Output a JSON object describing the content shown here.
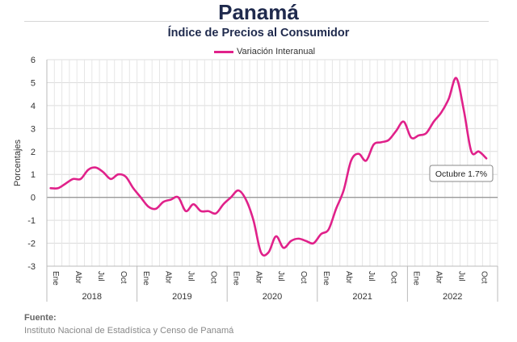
{
  "header": {
    "title": "Panamá",
    "subtitle": "Índice de Precios al Consumidor"
  },
  "source": {
    "label": "Fuente:",
    "text": "Instituto Nacional de Estadística y Censo de Panamá"
  },
  "chart_data": {
    "type": "line",
    "title": "",
    "ylabel": "Porcentajes",
    "xlabel": "",
    "ylim": [
      -3,
      6
    ],
    "yticks": [
      -3,
      -2,
      -1,
      0,
      1,
      2,
      3,
      4,
      5,
      6
    ],
    "grid": true,
    "legend_position": "top",
    "month_tick_labels": [
      "Ene",
      "Abr",
      "Jul",
      "Oct"
    ],
    "years": [
      "2018",
      "2019",
      "2020",
      "2021",
      "2022"
    ],
    "annotation": "Octubre 1.7%",
    "series": [
      {
        "name": "Variación Interanual",
        "color": "#e0218a",
        "values": [
          0.4,
          0.4,
          0.6,
          0.8,
          0.8,
          1.2,
          1.3,
          1.1,
          0.8,
          1.0,
          0.9,
          0.4,
          0.0,
          -0.4,
          -0.5,
          -0.2,
          -0.1,
          0.0,
          -0.6,
          -0.3,
          -0.6,
          -0.6,
          -0.7,
          -0.3,
          0.0,
          0.3,
          -0.1,
          -1.0,
          -2.4,
          -2.4,
          -1.7,
          -2.2,
          -1.9,
          -1.8,
          -1.9,
          -2.0,
          -1.6,
          -1.4,
          -0.5,
          0.3,
          1.6,
          1.9,
          1.6,
          2.3,
          2.4,
          2.5,
          2.9,
          3.3,
          2.6,
          2.7,
          2.8,
          3.3,
          3.7,
          4.3,
          5.2,
          3.8,
          2.0,
          2.0,
          1.7
        ]
      }
    ]
  }
}
